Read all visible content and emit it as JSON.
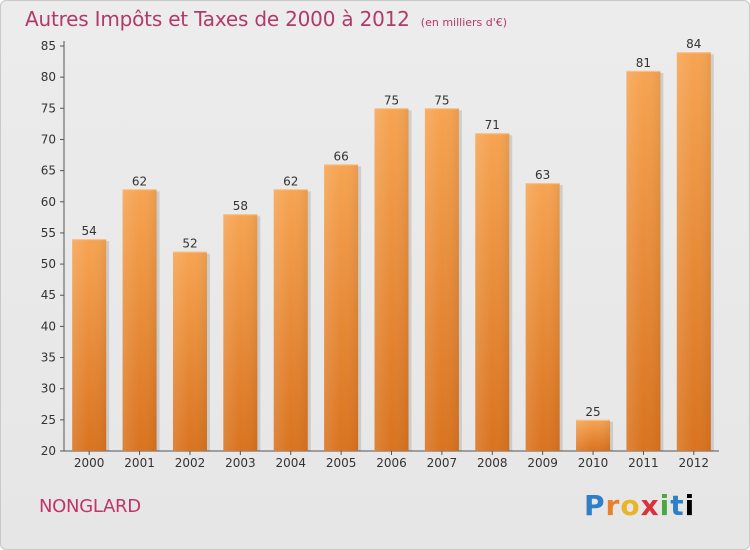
{
  "chart_data": {
    "type": "bar",
    "title": "Autres Impôts et Taxes de 2000 à 2012",
    "subtitle": "(en milliers d'€)",
    "categories": [
      "2000",
      "2001",
      "2002",
      "2003",
      "2004",
      "2005",
      "2006",
      "2007",
      "2008",
      "2009",
      "2010",
      "2011",
      "2012"
    ],
    "values": [
      54,
      62,
      52,
      58,
      62,
      66,
      75,
      75,
      71,
      63,
      25,
      81,
      84
    ],
    "ylim": [
      20,
      85
    ],
    "yticks": [
      20,
      25,
      30,
      35,
      40,
      45,
      50,
      55,
      60,
      65,
      70,
      75,
      80,
      85
    ],
    "grid": false,
    "bar_color": "#f0953a"
  },
  "footer": {
    "commune": "NONGLARD",
    "logo_letters": [
      "P",
      "r",
      "o",
      "x",
      "i",
      "t",
      "i"
    ]
  }
}
